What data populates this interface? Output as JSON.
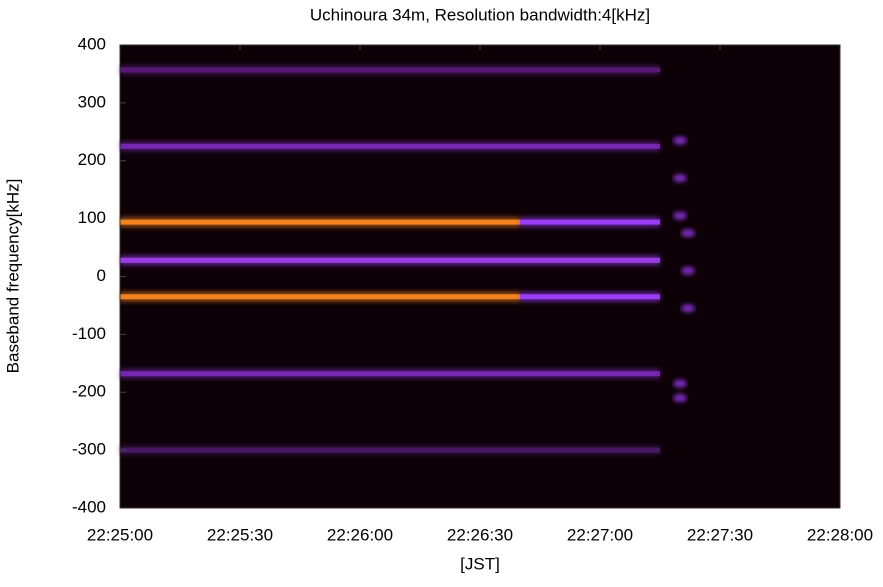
{
  "chart_data": {
    "type": "spectrogram",
    "title": "Uchinoura 34m, Resolution bandwidth:4[kHz]",
    "x_label": "[JST]",
    "y_label": "Baseband frequency[kHz]",
    "background": "#0d0006",
    "xlim": [
      "22:25:00",
      "22:28:00"
    ],
    "xticks": [
      "22:25:00",
      "22:25:30",
      "22:26:00",
      "22:26:30",
      "22:27:00",
      "22:27:30",
      "22:28:00"
    ],
    "ylim": [
      -400,
      400
    ],
    "yticks": [
      -400,
      -300,
      -200,
      -100,
      0,
      100,
      200,
      300,
      400
    ],
    "signals": [
      {
        "frequency": 357,
        "start": "22:25:00",
        "end": "22:27:15",
        "color": "#5a1a7a"
      },
      {
        "frequency": 225,
        "start": "22:25:00",
        "end": "22:27:15",
        "color": "#7a2ab8"
      },
      {
        "frequency": 94,
        "start": "22:25:00",
        "end": "22:26:40",
        "color": "#ff8a20"
      },
      {
        "frequency": 94,
        "start": "22:26:40",
        "end": "22:27:15",
        "color": "#a040ff"
      },
      {
        "frequency": 28,
        "start": "22:25:00",
        "end": "22:27:15",
        "color": "#a040f0"
      },
      {
        "frequency": -35,
        "start": "22:25:00",
        "end": "22:26:40",
        "color": "#ff8a20"
      },
      {
        "frequency": -35,
        "start": "22:26:40",
        "end": "22:27:15",
        "color": "#a040ff"
      },
      {
        "frequency": -168,
        "start": "22:25:00",
        "end": "22:27:15",
        "color": "#7a2ab8"
      },
      {
        "frequency": -300,
        "start": "22:25:00",
        "end": "22:27:15",
        "color": "#4a1a66"
      }
    ],
    "bursts": [
      {
        "time": "22:27:20",
        "frequency": 235
      },
      {
        "time": "22:27:20",
        "frequency": 170
      },
      {
        "time": "22:27:20",
        "frequency": 105
      },
      {
        "time": "22:27:22",
        "frequency": 75
      },
      {
        "time": "22:27:22",
        "frequency": 10
      },
      {
        "time": "22:27:22",
        "frequency": -55
      },
      {
        "time": "22:27:20",
        "frequency": -185
      },
      {
        "time": "22:27:20",
        "frequency": -210
      }
    ],
    "burst_color": "#9a38f0"
  }
}
